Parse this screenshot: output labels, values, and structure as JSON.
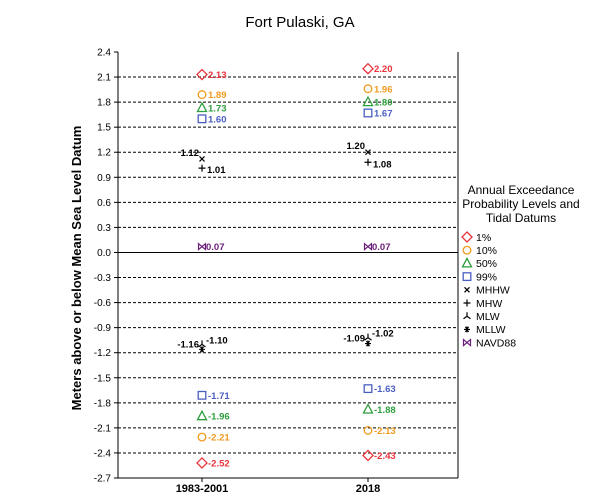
{
  "chart_data": {
    "type": "scatter",
    "title": "Fort Pulaski, GA",
    "xlabel": "",
    "ylabel": "Meters above or below Mean Sea Level Datum",
    "ylim": [
      -2.7,
      2.4
    ],
    "yticks": [
      "2.4",
      "2.1",
      "1.8",
      "1.5",
      "1.2",
      "0.9",
      "0.6",
      "0.3",
      "0.0",
      "-0.3",
      "-0.6",
      "-0.9",
      "-1.2",
      "-1.5",
      "-1.8",
      "-2.1",
      "-2.4",
      "-2.7"
    ],
    "categories": [
      "1983-2001",
      "2018"
    ],
    "legend_title": [
      "Annual Exceedance",
      "Probability Levels and",
      "Tidal Datums"
    ],
    "series": [
      {
        "name": "1%",
        "marker": "diamond",
        "color": "#e8333c",
        "high": [
          2.13,
          2.2
        ],
        "low": [
          -2.52,
          -2.43
        ],
        "labels_high": [
          "2.13",
          "2.20"
        ],
        "labels_low": [
          "-2.52",
          "-2.43"
        ]
      },
      {
        "name": "10%",
        "marker": "circle",
        "color": "#f29a1f",
        "high": [
          1.89,
          1.96
        ],
        "low": [
          -2.21,
          -2.13
        ],
        "labels_high": [
          "1.89",
          "1.96"
        ],
        "labels_low": [
          "-2.21",
          "-2.13"
        ]
      },
      {
        "name": "50%",
        "marker": "triangle",
        "color": "#2e9e3e",
        "high": [
          1.73,
          1.8
        ],
        "low": [
          -1.96,
          -1.88
        ],
        "labels_high": [
          "1.73",
          "1.80"
        ],
        "labels_low": [
          "-1.96",
          "-1.88"
        ]
      },
      {
        "name": "99%",
        "marker": "square",
        "color": "#4a5fc1",
        "high": [
          1.6,
          1.67
        ],
        "low": [
          -1.71,
          -1.63
        ],
        "labels_high": [
          "1.60",
          "1.67"
        ],
        "labels_low": [
          "-1.71",
          "-1.63"
        ]
      },
      {
        "name": "MHHW",
        "marker": "x",
        "color": "#000000",
        "values": [
          1.12,
          1.2
        ],
        "labels": [
          "1.12",
          "1.20"
        ]
      },
      {
        "name": "MHW",
        "marker": "plus",
        "color": "#000000",
        "values": [
          1.01,
          1.08
        ],
        "labels": [
          "1.01",
          "1.08"
        ]
      },
      {
        "name": "MLW",
        "marker": "tri",
        "color": "#000000",
        "values": [
          -1.1,
          -1.02
        ],
        "labels": [
          "-1.10",
          "-1.02"
        ]
      },
      {
        "name": "MLLW",
        "marker": "star",
        "color": "#000000",
        "values": [
          -1.16,
          -1.09
        ],
        "labels": [
          "-1.16",
          "-1.09"
        ]
      },
      {
        "name": "NAVD88",
        "marker": "bowtie",
        "color": "#6b1f7a",
        "values": [
          0.07,
          0.07
        ],
        "labels": [
          "0.07",
          "0.07"
        ]
      }
    ]
  }
}
